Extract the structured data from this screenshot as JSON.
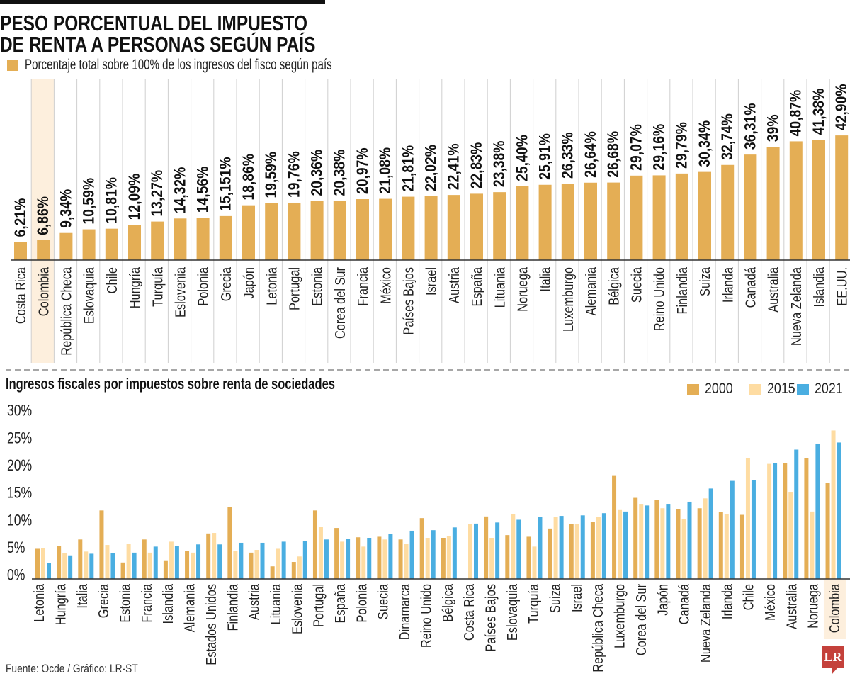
{
  "header": {
    "title_line1": "PESO PORCENTUAL DEL IMPUESTO",
    "title_line2": "DE RENTA A PERSONAS SEGÚN PAÍS",
    "legend_label": "Porcentaje total sobre 100% de los ingresos del fisco según país"
  },
  "colors": {
    "gold": "#E4AE55",
    "peach": "#FEDCA2",
    "blue": "#4AAEE1",
    "highlight": "#FDEFDD",
    "logo_red": "#C4413B"
  },
  "chart_data": [
    {
      "type": "bar",
      "title": "PESO PORCENTUAL DEL IMPUESTO DE RENTA A PERSONAS SEGÚN PAÍS",
      "legend": [
        "Porcentaje total sobre 100% de los ingresos del fisco según país"
      ],
      "categories": [
        "Costa Rica",
        "Colombia",
        "República Checa",
        "Eslovaquia",
        "Chile",
        "Hungría",
        "Turquía",
        "Eslovenia",
        "Polonia",
        "Grecia",
        "Japón",
        "Letonia",
        "Portugal",
        "Estonia",
        "Corea del Sur",
        "Francia",
        "México",
        "Países Bajos",
        "Israel",
        "Austria",
        "España",
        "Lituania",
        "Noruega",
        "Italia",
        "Luxemburgo",
        "Alemania",
        "Bélgica",
        "Suecia",
        "Reino Unido",
        "Finlandia",
        "Suiza",
        "Irlanda",
        "Canadá",
        "Australia",
        "Nueva Zelanda",
        "Islandia",
        "EE.UU."
      ],
      "values": [
        6.21,
        6.86,
        9.34,
        10.59,
        10.81,
        12.09,
        13.27,
        14.32,
        14.56,
        15.151,
        18.86,
        19.59,
        19.76,
        20.36,
        20.38,
        20.97,
        21.08,
        21.81,
        22.02,
        22.41,
        22.83,
        23.38,
        25.4,
        25.91,
        26.33,
        26.64,
        26.68,
        29.07,
        29.16,
        29.79,
        30.34,
        32.74,
        36.31,
        39,
        40.87,
        41.38,
        42.9
      ],
      "value_labels": [
        "6,21%",
        "6,86%",
        "9,34%",
        "10,59%",
        "10,81%",
        "12,09%",
        "13,27%",
        "14,32%",
        "14,56%",
        "15,151%",
        "18,86%",
        "19,59%",
        "19,76%",
        "20,36%",
        "20,38%",
        "20,97%",
        "21,08%",
        "21,81%",
        "22,02%",
        "22,41%",
        "22,83%",
        "23,38%",
        "25,40%",
        "25,91%",
        "26,33%",
        "26,64%",
        "26,68%",
        "29,07%",
        "29,16%",
        "29,79%",
        "30,34%",
        "32,74%",
        "36,31%",
        "39%",
        "40,87%",
        "41,38%",
        "42,90%"
      ],
      "highlight": "Colombia",
      "color": "#E4AE55",
      "xlabel": "",
      "ylabel": "",
      "ylim": [
        0,
        45
      ],
      "grid": false
    },
    {
      "type": "bar",
      "title": "Ingresos fiscales por impuestos sobre renta de sociedades",
      "categories": [
        "Letonia",
        "Hungría",
        "Italia",
        "Grecia",
        "Estonia",
        "Francia",
        "Islandia",
        "Alemania",
        "Estados Unidos",
        "Finlandia",
        "Austria",
        "Lituania",
        "Eslovenia",
        "Portugal",
        "España",
        "Polonia",
        "Suecia",
        "Dinamarca",
        "Reino Unido",
        "Bélgica",
        "Costa Rica",
        "Países Bajos",
        "Eslovaquia",
        "Turquía",
        "Suiza",
        "Israel",
        "República Checa",
        "Luxemburgo",
        "Corea del Sur",
        "Japón",
        "Canadá",
        "Nueva Zelanda",
        "Irlanda",
        "Chile",
        "México",
        "Australia",
        "Noruega",
        "Colombia"
      ],
      "series": [
        {
          "name": "2000",
          "color": "#E4AE55",
          "values": [
            5.5,
            6.0,
            7.2,
            12.5,
            3.0,
            7.2,
            3.4,
            5.1,
            8.3,
            13.1,
            4.8,
            2.3,
            3.1,
            12.5,
            9.3,
            7.6,
            7.7,
            7.2,
            11.1,
            7.5,
            null,
            11.4,
            8.0,
            7.7,
            9.2,
            10.0,
            10.4,
            18.8,
            14.8,
            14.4,
            12.8,
            12.9,
            12.2,
            11.7,
            null,
            21.2,
            22.1,
            17.5
          ]
        },
        {
          "name": "2015",
          "color": "#FEDCA2",
          "values": [
            5.6,
            4.7,
            5.0,
            6.2,
            6.4,
            4.8,
            6.8,
            4.8,
            8.4,
            5.1,
            5.3,
            5.5,
            4.1,
            9.5,
            6.8,
            5.9,
            7.2,
            6.4,
            7.5,
            7.8,
            10.0,
            7.5,
            11.8,
            5.9,
            11.3,
            10.0,
            11.3,
            12.7,
            13.7,
            12.9,
            10.9,
            14.7,
            11.8,
            22.0,
            21.0,
            15.9,
            12.3,
            27.1
          ]
        },
        {
          "name": "2021",
          "color": "#4AAEE1",
          "values": [
            2.9,
            4.3,
            4.6,
            4.7,
            4.8,
            5.9,
            6.0,
            6.3,
            6.3,
            6.6,
            6.6,
            6.8,
            6.9,
            7.2,
            7.3,
            7.5,
            8.2,
            8.8,
            8.9,
            9.4,
            10.1,
            10.3,
            10.8,
            11.3,
            11.5,
            11.6,
            12.0,
            12.3,
            13.4,
            13.7,
            14.1,
            16.5,
            17.9,
            18.0,
            21.2,
            23.6,
            24.7,
            24.9
          ]
        }
      ],
      "yticks": [
        0,
        5,
        10,
        15,
        20,
        25,
        30
      ],
      "ytick_labels": [
        "0%",
        "5%",
        "10%",
        "15%",
        "20%",
        "25%",
        "30%"
      ],
      "ylim": [
        0,
        30
      ],
      "xlabel": "",
      "ylabel": "",
      "highlight": "Colombia",
      "legend_position": "top-right",
      "grid": false
    }
  ],
  "footer": {
    "source": "Fuente: Ocde / Gráfico: LR-ST",
    "logo_text": "LR"
  }
}
